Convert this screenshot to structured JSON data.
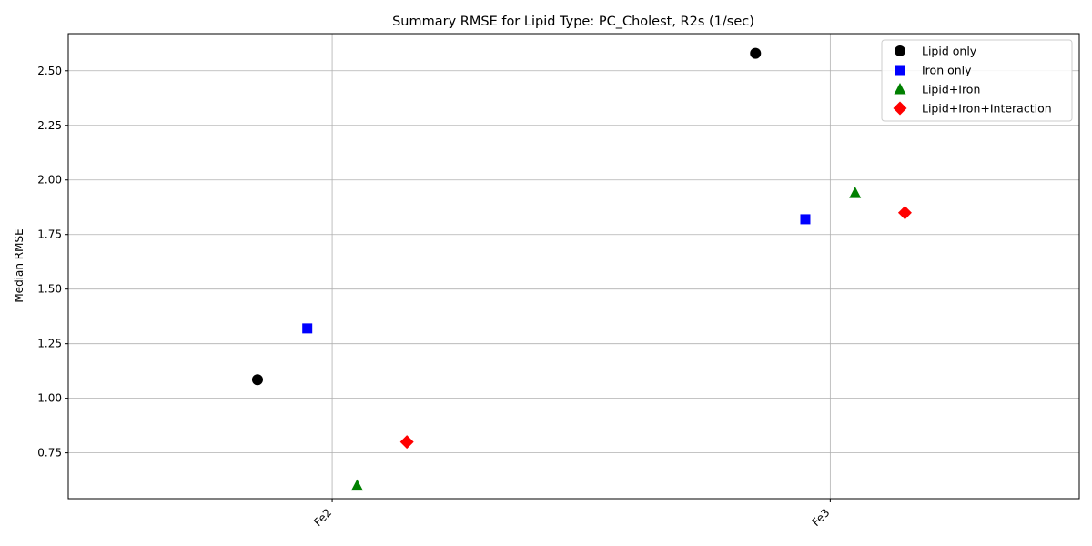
{
  "chart_data": {
    "type": "scatter",
    "title": "Summary RMSE for Lipid Type: PC_Cholest, R2s (1/sec)",
    "xlabel": "",
    "ylabel": "Median RMSE",
    "categories": [
      "Fe2",
      "Fe3"
    ],
    "ylim": [
      0.54,
      2.67
    ],
    "yticks": [
      0.75,
      1.0,
      1.25,
      1.5,
      1.75,
      2.0,
      2.25,
      2.5
    ],
    "grid": true,
    "legend_position": "top-right",
    "series": [
      {
        "name": "Lipid only",
        "marker": "circle",
        "color": "#000000",
        "offset": -0.15,
        "values": [
          1.085,
          2.58
        ]
      },
      {
        "name": "Iron only",
        "marker": "square",
        "color": "#0000ff",
        "offset": -0.05,
        "values": [
          1.32,
          1.82
        ]
      },
      {
        "name": "Lipid+Iron",
        "marker": "triangle",
        "color": "#008000",
        "offset": 0.05,
        "values": [
          0.6,
          1.94
        ]
      },
      {
        "name": "Lipid+Iron+Interaction",
        "marker": "diamond",
        "color": "#ff0000",
        "offset": 0.15,
        "values": [
          0.8,
          1.85
        ]
      }
    ]
  }
}
